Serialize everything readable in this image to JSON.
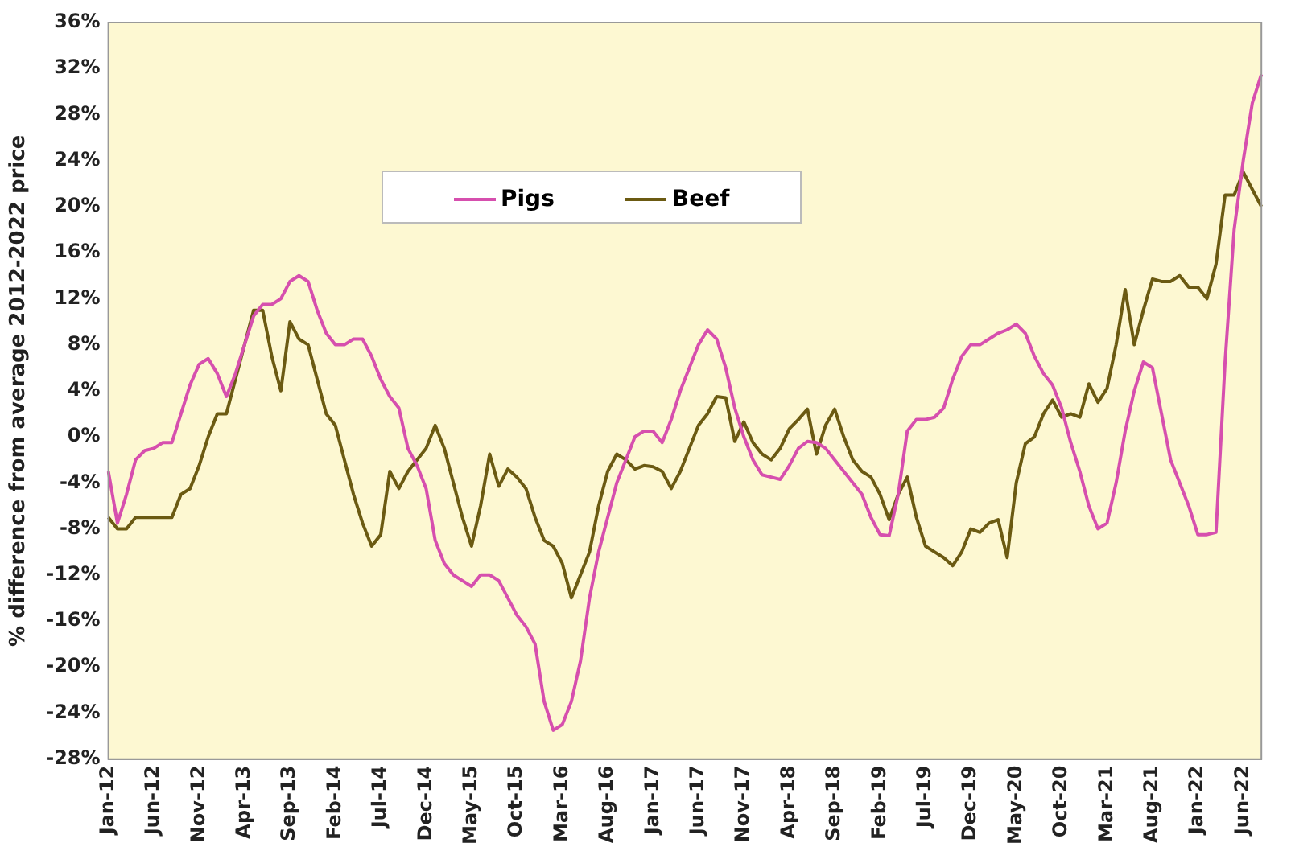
{
  "chart_data": {
    "type": "line",
    "ylabel": "% difference from average 2012-2022 price",
    "categories": [
      "Jan-12",
      null,
      null,
      null,
      null,
      "Jun-12",
      null,
      null,
      null,
      null,
      "Nov-12",
      null,
      null,
      null,
      null,
      "Apr-13",
      null,
      null,
      null,
      null,
      "Sep-13",
      null,
      null,
      null,
      null,
      "Feb-14",
      null,
      null,
      null,
      null,
      "Jul-14",
      null,
      null,
      null,
      null,
      "Dec-14",
      null,
      null,
      null,
      null,
      "May-15",
      null,
      null,
      null,
      null,
      "Oct-15",
      null,
      null,
      null,
      null,
      "Mar-16",
      null,
      null,
      null,
      null,
      "Aug-16",
      null,
      null,
      null,
      null,
      "Jan-17",
      null,
      null,
      null,
      null,
      "Jun-17",
      null,
      null,
      null,
      null,
      "Nov-17",
      null,
      null,
      null,
      null,
      "Apr-18",
      null,
      null,
      null,
      null,
      "Sep-18",
      null,
      null,
      null,
      null,
      "Feb-19",
      null,
      null,
      null,
      null,
      "Jul-19",
      null,
      null,
      null,
      null,
      "Dec-19",
      null,
      null,
      null,
      null,
      "May-20",
      null,
      null,
      null,
      null,
      "Oct-20",
      null,
      null,
      null,
      null,
      "Mar-21",
      null,
      null,
      null,
      null,
      "Aug-21",
      null,
      null,
      null,
      null,
      "Jan-22",
      null,
      null,
      null,
      null,
      "Jun-22",
      null,
      null
    ],
    "series": [
      {
        "name": "Pigs",
        "color": "#d64fae",
        "values": [
          -3,
          -7.5,
          -5,
          -2,
          -1.2,
          -1,
          -0.5,
          -0.5,
          2,
          4.5,
          6.3,
          6.8,
          5.5,
          3.5,
          5.5,
          8,
          10.5,
          11.5,
          11.5,
          12,
          13.5,
          14,
          13.5,
          11,
          9,
          8,
          8,
          8.5,
          8.5,
          7,
          5,
          3.5,
          2.5,
          -1,
          -2.5,
          -4.5,
          -9,
          -11,
          -12,
          -12.5,
          -13,
          -12,
          -12,
          -12.5,
          -14,
          -15.5,
          -16.5,
          -18,
          -23,
          -25.5,
          -25,
          -23,
          -19.5,
          -14,
          -10,
          -7,
          -4,
          -2,
          0,
          0.5,
          0.5,
          -0.5,
          1.5,
          4,
          6,
          8,
          9.3,
          8.5,
          6,
          2.5,
          0,
          -2,
          -3.3,
          -3.5,
          -3.7,
          -2.5,
          -1,
          -0.4,
          -0.5,
          -1,
          -2,
          -3,
          -4,
          -5,
          -7,
          -8.5,
          -8.6,
          -5,
          0.5,
          1.5,
          1.5,
          1.7,
          2.5,
          5,
          7,
          8,
          8,
          8.5,
          9,
          9.3,
          9.8,
          9,
          7,
          5.5,
          4.5,
          2.5,
          -0.5,
          -3,
          -6,
          -8,
          -7.5,
          -4,
          0.5,
          4,
          6.5,
          6,
          2,
          -2,
          -4,
          -6,
          -8.5,
          -8.5,
          -8.3,
          6.5,
          18,
          24,
          29,
          31.5
        ]
      },
      {
        "name": "Beef",
        "color": "#6b5a12",
        "values": [
          -7,
          -8,
          -8,
          -7,
          -7,
          -7,
          -7,
          -7,
          -5,
          -4.5,
          -2.5,
          0,
          2,
          2,
          5,
          8,
          11,
          11,
          7,
          4,
          10,
          8.5,
          8,
          5,
          2,
          1,
          -2,
          -5,
          -7.5,
          -9.5,
          -8.5,
          -3,
          -4.5,
          -3,
          -2,
          -1,
          1,
          -1,
          -4,
          -7,
          -9.5,
          -6,
          -1.5,
          -4.3,
          -2.8,
          -3.5,
          -4.5,
          -7,
          -9,
          -9.5,
          -11,
          -14,
          -12,
          -10,
          -6,
          -3,
          -1.5,
          -2,
          -2.8,
          -2.5,
          -2.6,
          -3,
          -4.5,
          -3,
          -1,
          1,
          2,
          3.5,
          3.4,
          -0.4,
          1.3,
          -0.5,
          -1.5,
          -2,
          -1,
          0.7,
          1.5,
          2.4,
          -1.5,
          1,
          2.4,
          0,
          -2,
          -3,
          -3.5,
          -5,
          -7.2,
          -5,
          -3.5,
          -7,
          -9.5,
          -10,
          -10.5,
          -11.2,
          -10,
          -8,
          -8.3,
          -7.5,
          -7.2,
          -10.5,
          -4,
          -0.6,
          0,
          2,
          3.2,
          1.7,
          2,
          1.7,
          4.6,
          3,
          4.2,
          8,
          12.8,
          8,
          11,
          13.7,
          13.5,
          13.5,
          14,
          13,
          13,
          12,
          15,
          21,
          21,
          23,
          21.5,
          20
        ]
      }
    ],
    "ylim": [
      -28,
      36
    ],
    "yticks": [
      {
        "value": -28,
        "label": "-28%"
      },
      {
        "value": -24,
        "label": "-24%"
      },
      {
        "value": -20,
        "label": "-20%"
      },
      {
        "value": -16,
        "label": "-16%"
      },
      {
        "value": -12,
        "label": "-12%"
      },
      {
        "value": -8,
        "label": "-8%"
      },
      {
        "value": -4,
        "label": "-4%"
      },
      {
        "value": 0,
        "label": "0%"
      },
      {
        "value": 4,
        "label": "4%"
      },
      {
        "value": 8,
        "label": "8%"
      },
      {
        "value": 12,
        "label": "12%"
      },
      {
        "value": 16,
        "label": "16%"
      },
      {
        "value": 20,
        "label": "20%"
      },
      {
        "value": 24,
        "label": "24%"
      },
      {
        "value": 28,
        "label": "28%"
      },
      {
        "value": 32,
        "label": "32%"
      },
      {
        "value": 36,
        "label": "36%"
      }
    ],
    "legend": "top",
    "marker": "none",
    "line_style": "solid",
    "grid": false
  }
}
